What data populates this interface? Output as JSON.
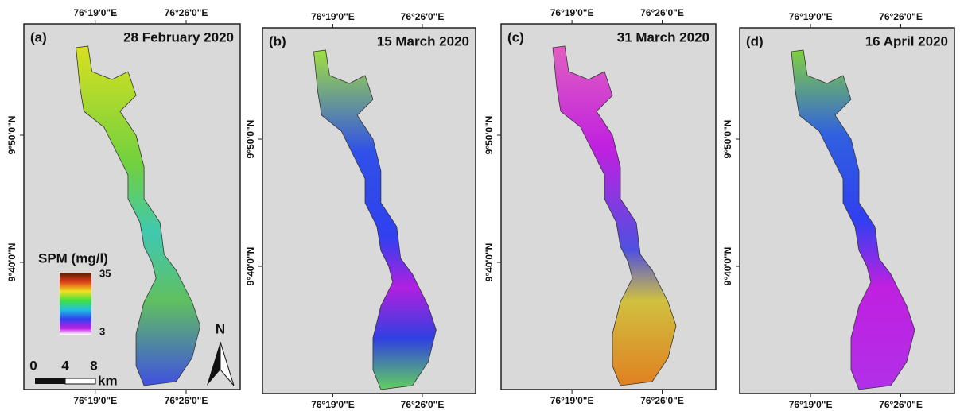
{
  "panels": [
    {
      "label": "(a)",
      "date": "28 February 2020",
      "top_lon": [
        "76°19'0\"E",
        "76°26'0\"E"
      ],
      "bottom_lon": [
        "76°19'0\"E",
        "76°26'0\"E"
      ],
      "left_lat": [
        "9°50'0\"N",
        "9°40'0\"N"
      ]
    },
    {
      "label": "(b)",
      "date": "15 March 2020",
      "top_lon": [
        "76°19'0\"E",
        "76°26'0\"E"
      ],
      "bottom_lon": [
        "76°19'0\"E",
        "76°26'0\"E"
      ],
      "left_lat": [
        "9°50'0\"N",
        "9°40'0\"N"
      ]
    },
    {
      "label": "(c)",
      "date": "31 March 2020",
      "top_lon": [
        "76°19'0\"E",
        "76°26'0\"E"
      ],
      "bottom_lon": [
        "76°19'0\"E",
        "76°26'0\"E"
      ],
      "left_lat": [
        "9°50'0\"N",
        "9°40'0\"N"
      ]
    },
    {
      "label": "(d)",
      "date": "16 April 2020",
      "top_lon": [
        "76°19'0\"E",
        "76°26'0\"E"
      ],
      "bottom_lon": [
        "76°19'0\"E",
        "76°26'0\"E"
      ],
      "left_lat": [
        "9°50'0\"N",
        "9°40'0\"N"
      ]
    }
  ],
  "legend": {
    "title": "SPM (mg/l)",
    "max": "35",
    "min": "3"
  },
  "scale": {
    "ticks": [
      "0",
      "4",
      "8"
    ],
    "unit": "km"
  },
  "north": "N"
}
